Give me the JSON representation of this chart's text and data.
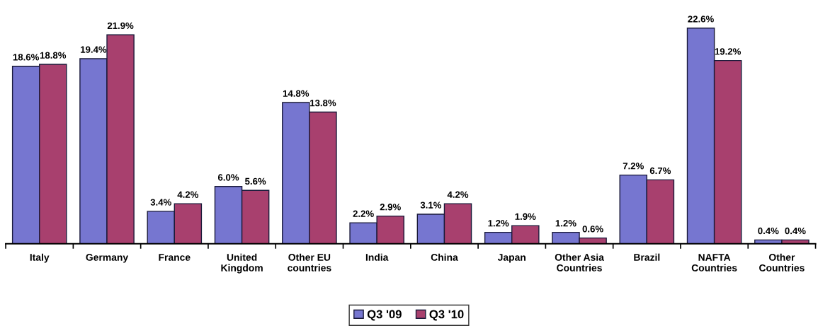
{
  "chart_data": {
    "type": "bar",
    "categories": [
      "Italy",
      "Germany",
      "France",
      "United\nKingdom",
      "Other EU\ncountries",
      "India",
      "China",
      "Japan",
      "Other Asia\nCountries",
      "Brazil",
      "NAFTA\nCountries",
      "Other\nCountries"
    ],
    "series": [
      {
        "name": "Q3 '09",
        "color": "#7676d0",
        "values": [
          18.6,
          19.4,
          3.4,
          6.0,
          14.8,
          2.2,
          3.1,
          1.2,
          1.2,
          7.2,
          22.6,
          0.4
        ],
        "value_labels": [
          "18.6%",
          "19.4%",
          "3.4%",
          "6.0%",
          "14.8%",
          "2.2%",
          "3.1%",
          "1.2%",
          "1.2%",
          "7.2%",
          "22.6%",
          "0.4%"
        ]
      },
      {
        "name": "Q3 '10",
        "color": "#a8406e",
        "values": [
          18.8,
          21.9,
          4.2,
          5.6,
          13.8,
          2.9,
          4.2,
          1.9,
          0.6,
          6.7,
          19.2,
          0.4
        ],
        "value_labels": [
          "18.8%",
          "21.9%",
          "4.2%",
          "5.6%",
          "13.8%",
          "2.9%",
          "4.2%",
          "1.9%",
          "0.6%",
          "6.7%",
          "19.2%",
          "0.4%"
        ]
      }
    ],
    "legend": "bottom",
    "tick_labels": "x"
  }
}
